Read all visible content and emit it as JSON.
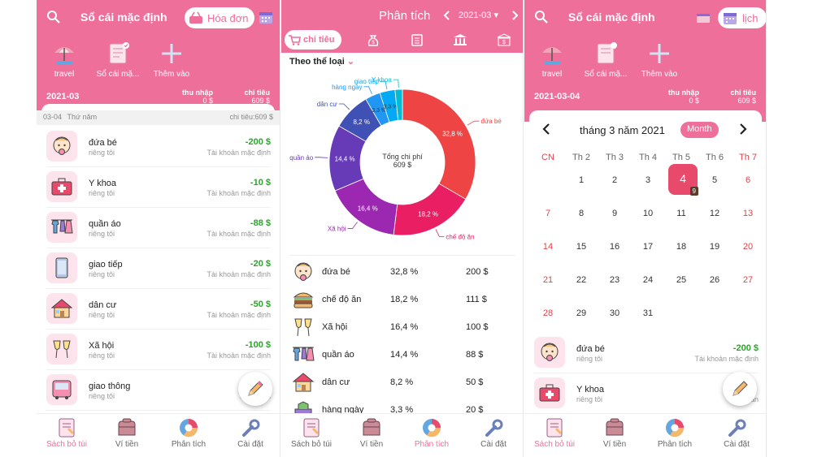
{
  "colors": {
    "brand": "#ee6f9a",
    "income": "#2aa52a",
    "weekend": "#e0434b"
  },
  "p1": {
    "title": "Sổ cái mặc định",
    "invoice_btn": "Hóa đơn",
    "books": [
      {
        "label": "travel",
        "icon": "umbrella-icon"
      },
      {
        "label": "Sổ cái mặ...",
        "icon": "ledger-icon"
      },
      {
        "label": "Thêm vào",
        "icon": "plus-icon"
      }
    ],
    "summary": {
      "date": "2021-03",
      "income_label": "thu nhập",
      "income_value": "0 $",
      "expense_label": "chi tiêu",
      "expense_value": "609 $"
    },
    "day_header": {
      "date": "03-04",
      "weekday": "Thứ năm",
      "total": "chi tiêu:609 $"
    },
    "transactions": [
      {
        "name": "đứa bé",
        "sub": "riêng tôi",
        "amount": "-200 $",
        "account": "Tài khoản mặc định",
        "icon": "baby-icon"
      },
      {
        "name": "Y khoa",
        "sub": "riêng tôi",
        "amount": "-10 $",
        "account": "Tài khoản mặc định",
        "icon": "medical-kit-icon"
      },
      {
        "name": "quần áo",
        "sub": "riêng tôi",
        "amount": "-88 $",
        "account": "Tài khoản mặc định",
        "icon": "clothes-icon"
      },
      {
        "name": "giao tiếp",
        "sub": "riêng tôi",
        "amount": "-20 $",
        "account": "Tài khoản mặc định",
        "icon": "phone-icon"
      },
      {
        "name": "dân cư",
        "sub": "riêng tôi",
        "amount": "-50 $",
        "account": "Tài khoản mặc định",
        "icon": "house-icon"
      },
      {
        "name": "Xã hội",
        "sub": "riêng tôi",
        "amount": "-100 $",
        "account": "Tài khoản mặc định",
        "icon": "cheers-icon"
      },
      {
        "name": "giao thông",
        "sub": "riêng tôi",
        "amount": "",
        "account": "Tài khoản",
        "icon": "bus-icon"
      }
    ]
  },
  "nav": {
    "items": [
      {
        "label": "Sách bỏ túi",
        "icon": "book-icon"
      },
      {
        "label": "Ví tiền",
        "icon": "wallet-icon"
      },
      {
        "label": "Phân tích",
        "icon": "pie-icon"
      },
      {
        "label": "Cài đặt",
        "icon": "wrench-icon"
      }
    ]
  },
  "p2": {
    "title": "Phân tích",
    "period": "2021-03",
    "tab_expense": "chi tiêu",
    "category_label": "Theo thể loại",
    "donut_center_label": "Tổng chi phí",
    "donut_center_value": "609 $",
    "chart_labels": [
      "đứa bé",
      "chế độ ăn",
      "Xã hội",
      "quần áo",
      "dân cư",
      "hàng ngày",
      "giao tiếp",
      "Y khoa"
    ],
    "pct_labels": [
      "32,8 %",
      "18,2 %",
      "16,4 %",
      "14,4 %",
      "8,2 %",
      "3,3 %",
      "3,3 %"
    ],
    "rows": [
      {
        "name": "đứa bé",
        "pct": "32,8 %",
        "value": "200 $",
        "icon": "baby-icon"
      },
      {
        "name": "chế độ ăn",
        "pct": "18,2 %",
        "value": "111 $",
        "icon": "burger-icon"
      },
      {
        "name": "Xã hội",
        "pct": "16,4 %",
        "value": "100 $",
        "icon": "cheers-icon"
      },
      {
        "name": "quần áo",
        "pct": "14,4 %",
        "value": "88 $",
        "icon": "clothes-icon"
      },
      {
        "name": "dân cư",
        "pct": "8,2 %",
        "value": "50 $",
        "icon": "house-icon"
      },
      {
        "name": "hàng ngày",
        "pct": "3,3 %",
        "value": "20 $",
        "icon": "daily-icon"
      }
    ]
  },
  "chart_data": {
    "type": "pie",
    "categories": [
      "đứa bé",
      "chế độ ăn",
      "Xã hội",
      "quần áo",
      "dân cư",
      "hàng ngày",
      "giao tiếp",
      "Y khoa"
    ],
    "values": [
      32.8,
      18.2,
      16.4,
      14.4,
      8.2,
      3.3,
      3.3,
      1.6
    ],
    "colors": [
      "#ef4444",
      "#e91e63",
      "#9c27b0",
      "#673ab7",
      "#3f51b5",
      "#2196f3",
      "#03a9f4",
      "#00bcd4"
    ],
    "center_label": "Tổng chi phí",
    "center_value": "609 $"
  },
  "p3": {
    "title": "Sổ cái mặc định",
    "calendar_btn": "lịch",
    "summary": {
      "date": "2021-03-04",
      "income_label": "thu nhập",
      "income_value": "0 $",
      "expense_label": "chi tiêu",
      "expense_value": "609 $"
    },
    "month_title": "tháng 3 năm 2021",
    "month_btn": "Month",
    "weekdays": [
      "CN",
      "Th 2",
      "Th 3",
      "Th 4",
      "Th 5",
      "Th 6",
      "Th 7"
    ],
    "weeks": [
      [
        "",
        "1",
        "2",
        "3",
        "4",
        "5",
        "6"
      ],
      [
        "7",
        "8",
        "9",
        "10",
        "11",
        "12",
        "13"
      ],
      [
        "14",
        "15",
        "16",
        "17",
        "18",
        "19",
        "20"
      ],
      [
        "21",
        "22",
        "23",
        "24",
        "25",
        "26",
        "27"
      ],
      [
        "28",
        "29",
        "30",
        "31",
        "",
        "",
        ""
      ]
    ],
    "selected_day": "4",
    "selected_badge": "9",
    "transactions": [
      {
        "name": "đứa bé",
        "sub": "riêng tôi",
        "amount": "-200 $",
        "account": "Tài khoản mặc định",
        "icon": "baby-icon"
      },
      {
        "name": "Y khoa",
        "sub": "riêng tôi",
        "amount": "",
        "account": "Tài khoản",
        "icon": "medical-kit-icon"
      }
    ]
  }
}
